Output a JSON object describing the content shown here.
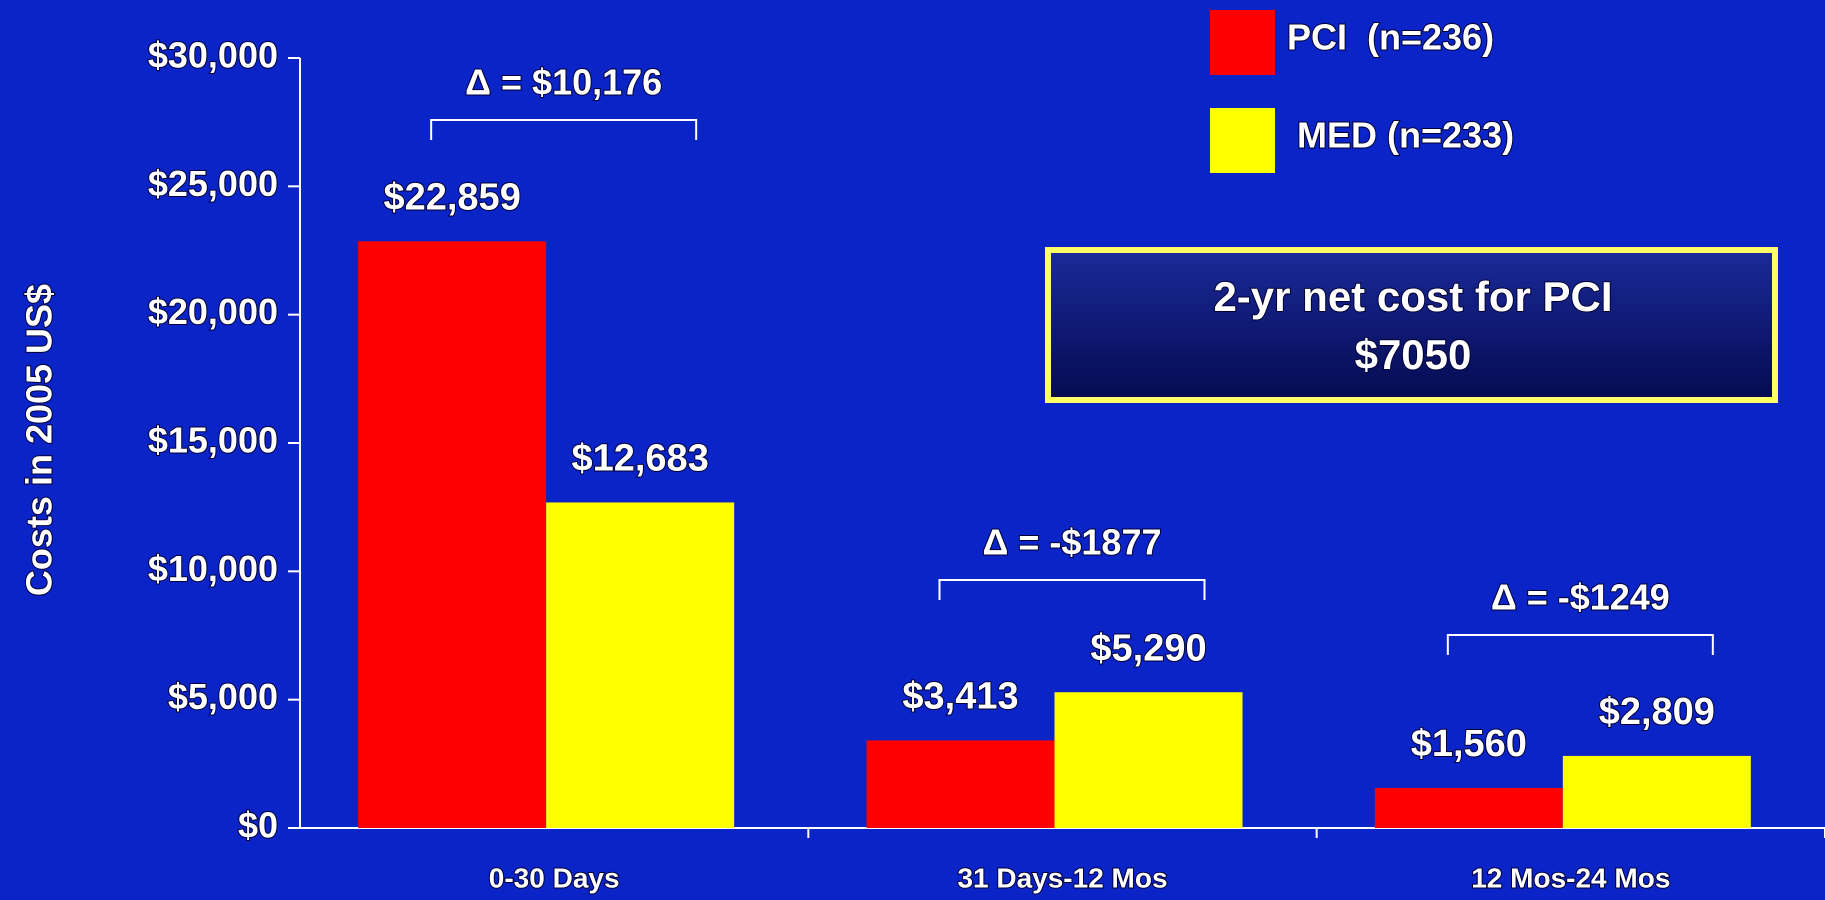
{
  "chart_data": {
    "type": "bar",
    "y_label": "Costs in 2005 US$",
    "categories": [
      "0-30 Days",
      "31 Days-12 Mos",
      "12 Mos-24 Mos"
    ],
    "series": [
      {
        "name": "PCI  (n=236)",
        "color": "#ff0000",
        "values": [
          22859,
          3413,
          1560
        ],
        "value_labels": [
          "$22,859",
          "$3,413",
          "$1,560"
        ]
      },
      {
        "name": "MED (n=233)",
        "color": "#ffff00",
        "values": [
          12683,
          5290,
          2809
        ],
        "value_labels": [
          "$12,683",
          "$5,290",
          "$2,809"
        ]
      }
    ],
    "ylim": [
      0,
      30000
    ],
    "yticks": [
      {
        "value": 0,
        "label": "$0"
      },
      {
        "value": 5000,
        "label": "$5,000"
      },
      {
        "value": 10000,
        "label": "$10,000"
      },
      {
        "value": 15000,
        "label": "$15,000"
      },
      {
        "value": 20000,
        "label": "$20,000"
      },
      {
        "value": 25000,
        "label": "$25,000"
      },
      {
        "value": 30000,
        "label": "$30,000"
      }
    ],
    "annotations": [
      "Δ = $10,176",
      "Δ = -$1877",
      "Δ = -$1249"
    ],
    "callout": [
      "2-yr net cost for PCI",
      "$7050"
    ],
    "grid": false
  }
}
